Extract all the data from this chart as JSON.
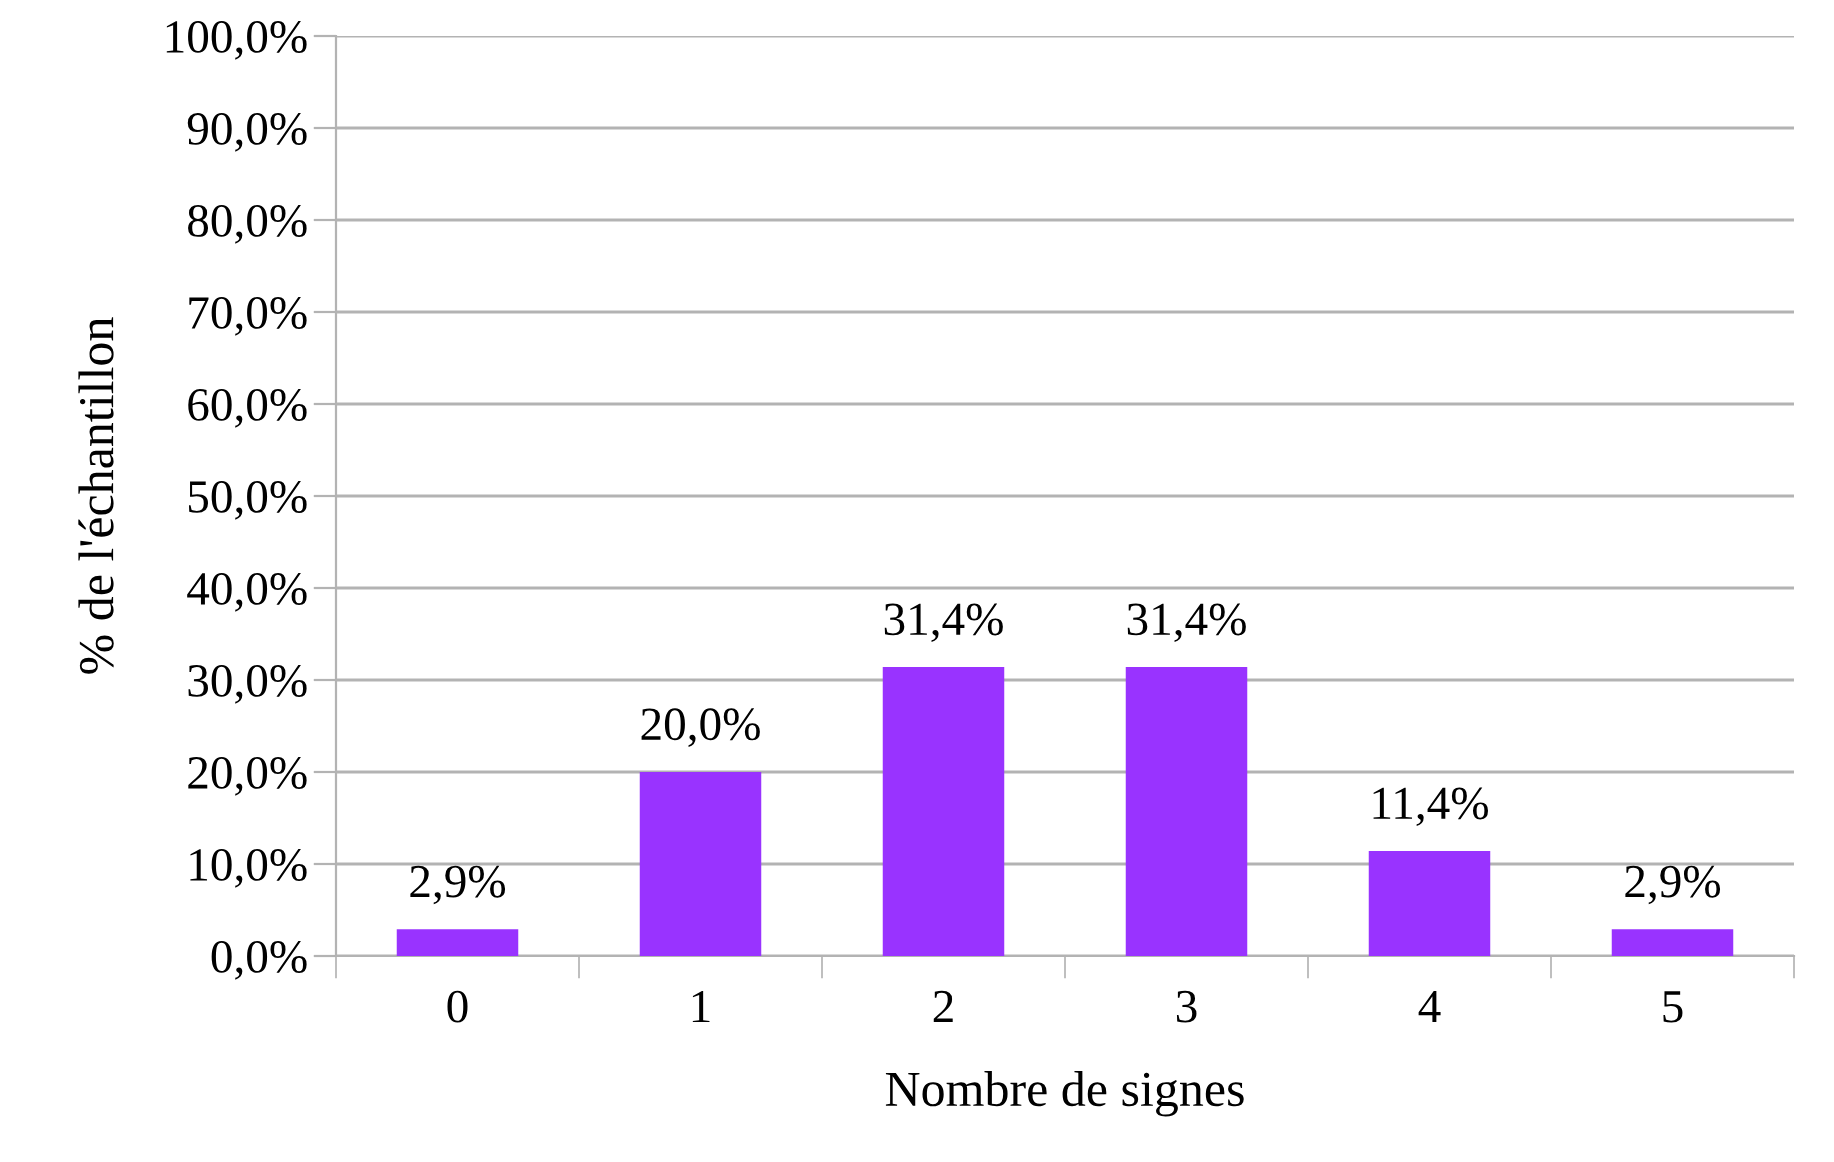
{
  "chart_data": {
    "type": "bar",
    "xlabel": "Nombre de signes",
    "ylabel": "% de l'échantillon",
    "categories": [
      "0",
      "1",
      "2",
      "3",
      "4",
      "5"
    ],
    "values": [
      2.9,
      20.0,
      31.4,
      31.4,
      11.4,
      2.9
    ],
    "value_labels": [
      "2,9%",
      "20,0%",
      "31,4%",
      "31,4%",
      "11,4%",
      "2,9%"
    ],
    "color": "#9933ff",
    "ylim": [
      0,
      100
    ],
    "yticks": [
      {
        "value": 0,
        "label": "0,0%"
      },
      {
        "value": 10,
        "label": "10,0%"
      },
      {
        "value": 20,
        "label": "20,0%"
      },
      {
        "value": 30,
        "label": "30,0%"
      },
      {
        "value": 40,
        "label": "40,0%"
      },
      {
        "value": 50,
        "label": "50,0%"
      },
      {
        "value": 60,
        "label": "60,0%"
      },
      {
        "value": 70,
        "label": "70,0%"
      },
      {
        "value": 80,
        "label": "80,0%"
      },
      {
        "value": 90,
        "label": "90,0%"
      },
      {
        "value": 100,
        "label": "100,0%"
      }
    ],
    "grid": "y"
  }
}
